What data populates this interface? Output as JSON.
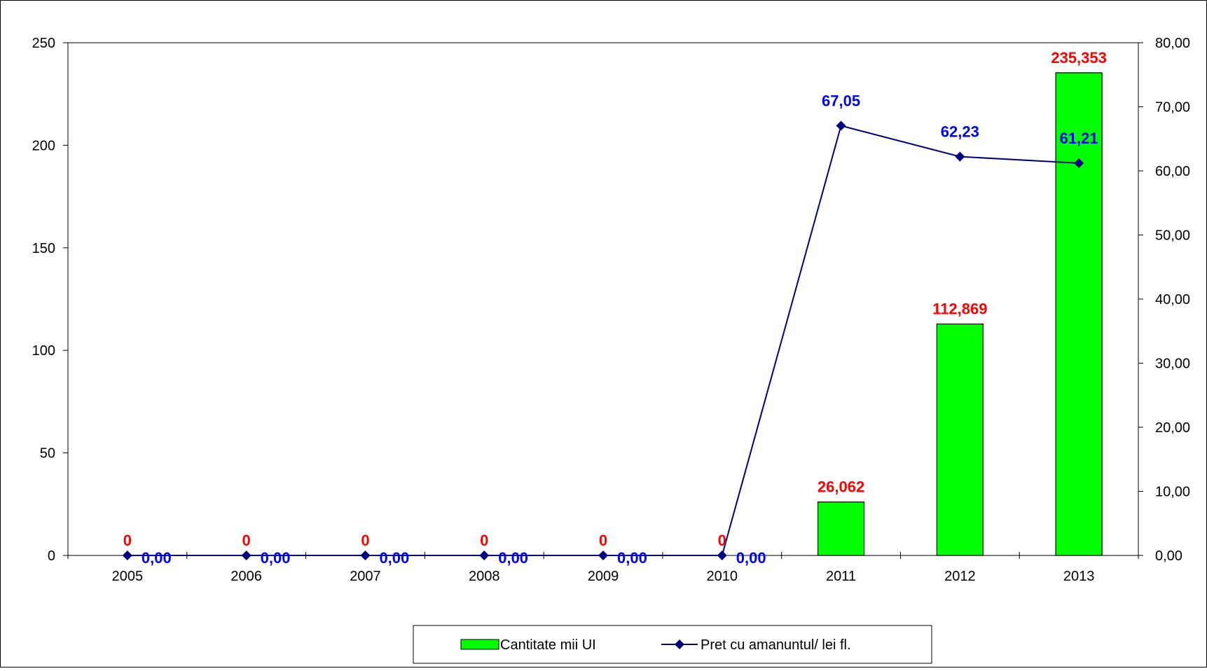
{
  "chart_data": {
    "type": "bar",
    "title": "",
    "categories": [
      "2005",
      "2006",
      "2007",
      "2008",
      "2009",
      "2010",
      "2011",
      "2012",
      "2013"
    ],
    "series": [
      {
        "name": "Cantitate mii UI",
        "type": "bar",
        "axis": "left",
        "values": [
          0,
          0,
          0,
          0,
          0,
          0,
          26.062,
          112.869,
          235.353
        ],
        "labels": [
          "0",
          "0",
          "0",
          "0",
          "0",
          "0",
          "26,062",
          "112,869",
          "235,353"
        ],
        "color": "#00ff00",
        "label_color": "#ff0000"
      },
      {
        "name": "Pret cu amanuntul/ lei fl.",
        "type": "line",
        "axis": "right",
        "values": [
          0,
          0,
          0,
          0,
          0,
          0,
          67.05,
          62.23,
          61.21
        ],
        "labels": [
          "0,00",
          "0,00",
          "0,00",
          "0,00",
          "0,00",
          "0,00",
          "67,05",
          "62,23",
          "61,21"
        ],
        "color": "#000080",
        "label_color": "#0000ff"
      }
    ],
    "y_left": {
      "ylim": [
        0,
        250
      ],
      "ticks": [
        0,
        50,
        100,
        150,
        200,
        250
      ],
      "tick_labels": [
        "0",
        "50",
        "100",
        "150",
        "200",
        "250"
      ]
    },
    "y_right": {
      "ylim": [
        0,
        80
      ],
      "ticks": [
        0,
        10,
        20,
        30,
        40,
        50,
        60,
        70,
        80
      ],
      "tick_labels": [
        "0,00",
        "10,00",
        "20,00",
        "30,00",
        "40,00",
        "50,00",
        "60,00",
        "70,00",
        "80,00"
      ]
    },
    "xlabel": "",
    "ylabel": "",
    "grid": false,
    "legend_position": "bottom"
  }
}
